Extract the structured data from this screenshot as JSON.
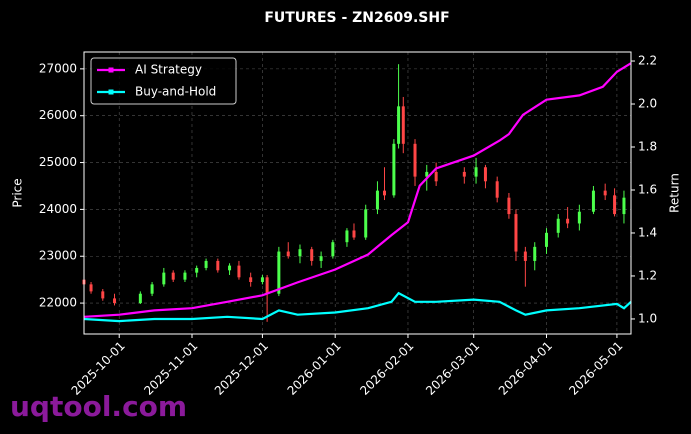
{
  "chart_data": {
    "type": "candlestick",
    "title": "FUTURES - ZN2609.SHF",
    "ylabel": "Price",
    "y2label": "Return",
    "watermark": "uqtool.com",
    "up_color": "#4cff4c",
    "down_color": "#ff4646",
    "x": [
      "2025-09-16",
      "2025-09-19",
      "2025-09-24",
      "2025-09-29",
      "2025-10-10",
      "2025-10-15",
      "2025-10-20",
      "2025-10-24",
      "2025-10-29",
      "2025-11-03",
      "2025-11-07",
      "2025-11-12",
      "2025-11-17",
      "2025-11-21",
      "2025-11-26",
      "2025-12-01",
      "2025-12-03",
      "2025-12-08",
      "2025-12-12",
      "2025-12-17",
      "2025-12-22",
      "2025-12-26",
      "2025-12-31",
      "2026-01-06",
      "2026-01-09",
      "2026-01-14",
      "2026-01-19",
      "2026-01-22",
      "2026-01-26",
      "2026-01-28",
      "2026-01-30",
      "2026-02-04",
      "2026-02-09",
      "2026-02-13",
      "2026-02-25",
      "2026-03-02",
      "2026-03-06",
      "2026-03-11",
      "2026-03-16",
      "2026-03-19",
      "2026-03-23",
      "2026-03-27",
      "2026-04-01",
      "2026-04-06",
      "2026-04-10",
      "2026-04-15",
      "2026-04-21",
      "2026-04-26",
      "2026-04-30",
      "2026-05-04"
    ],
    "open": [
      22500,
      22400,
      22250,
      22100,
      22000,
      22200,
      22400,
      22650,
      22500,
      22650,
      22750,
      22900,
      22700,
      22800,
      22550,
      22450,
      22550,
      22200,
      23100,
      23000,
      23150,
      22900,
      23000,
      23300,
      23550,
      23400,
      24000,
      24400,
      24300,
      25400,
      26200,
      25400,
      24700,
      24800,
      24800,
      24700,
      24900,
      24600,
      24250,
      23900,
      23100,
      22900,
      23200,
      23500,
      23800,
      23700,
      23950,
      24400,
      24300,
      23900
    ],
    "high": [
      22560,
      22450,
      22300,
      22200,
      22250,
      22450,
      22750,
      22700,
      22700,
      22800,
      22950,
      22950,
      22850,
      22900,
      22650,
      22600,
      22600,
      23200,
      23300,
      23250,
      23200,
      23100,
      23350,
      23600,
      23700,
      24100,
      24600,
      24900,
      25500,
      27100,
      26400,
      25500,
      24950,
      25000,
      24900,
      25100,
      24950,
      24700,
      24350,
      24000,
      23200,
      23300,
      23600,
      23900,
      24050,
      24100,
      24500,
      24550,
      24450,
      24400
    ],
    "low": [
      22350,
      22200,
      22050,
      21950,
      21980,
      22150,
      22350,
      22450,
      22450,
      22550,
      22700,
      22650,
      22600,
      22500,
      22350,
      22400,
      21600,
      22150,
      22950,
      22850,
      22800,
      22750,
      22950,
      23200,
      23350,
      23350,
      23900,
      24200,
      24250,
      25300,
      25200,
      24500,
      24400,
      24500,
      24550,
      24550,
      24450,
      24150,
      23800,
      22900,
      22350,
      22700,
      23050,
      23400,
      23600,
      23550,
      23900,
      24200,
      23850,
      23700
    ],
    "close": [
      22400,
      22250,
      22100,
      22000,
      22200,
      22400,
      22650,
      22500,
      22650,
      22750,
      22900,
      22700,
      22800,
      22550,
      22450,
      22550,
      22200,
      23100,
      23000,
      23150,
      22900,
      23000,
      23300,
      23550,
      23400,
      24000,
      24400,
      24300,
      25400,
      26200,
      25400,
      24700,
      24800,
      24600,
      24700,
      24900,
      24600,
      24250,
      23900,
      23100,
      22900,
      23200,
      23500,
      23800,
      23700,
      23950,
      24400,
      24300,
      23900,
      24250
    ],
    "series": [
      {
        "name": "AI Strategy",
        "color": "#ff00ff",
        "axis": "y2",
        "x": [
          "2025-09-16",
          "2025-10-01",
          "2025-10-16",
          "2025-11-01",
          "2025-11-16",
          "2025-12-01",
          "2025-12-16",
          "2026-01-01",
          "2026-01-15",
          "2026-01-25",
          "2026-02-01",
          "2026-02-06",
          "2026-02-13",
          "2026-03-01",
          "2026-03-12",
          "2026-03-16",
          "2026-03-22",
          "2026-04-01",
          "2026-04-15",
          "2026-04-25",
          "2026-05-01",
          "2026-05-07"
        ],
        "values": [
          1.01,
          1.02,
          1.04,
          1.05,
          1.08,
          1.11,
          1.17,
          1.23,
          1.3,
          1.39,
          1.45,
          1.62,
          1.7,
          1.76,
          1.83,
          1.86,
          1.95,
          2.02,
          2.04,
          2.08,
          2.15,
          2.19
        ]
      },
      {
        "name": "Buy-and-Hold",
        "color": "#00ffff",
        "axis": "y2",
        "x": [
          "2025-09-16",
          "2025-10-01",
          "2025-10-16",
          "2025-11-01",
          "2025-11-16",
          "2025-12-01",
          "2025-12-08",
          "2025-12-16",
          "2026-01-01",
          "2026-01-15",
          "2026-01-25",
          "2026-01-28",
          "2026-02-04",
          "2026-02-13",
          "2026-03-01",
          "2026-03-12",
          "2026-03-19",
          "2026-03-23",
          "2026-04-01",
          "2026-04-15",
          "2026-05-01",
          "2026-05-04",
          "2026-05-07"
        ],
        "values": [
          1.0,
          0.99,
          1.0,
          1.0,
          1.01,
          1.0,
          1.04,
          1.02,
          1.03,
          1.05,
          1.08,
          1.12,
          1.08,
          1.08,
          1.09,
          1.08,
          1.04,
          1.02,
          1.04,
          1.05,
          1.07,
          1.05,
          1.08
        ]
      }
    ],
    "xlim": [
      "2025-09-16",
      "2026-05-07"
    ],
    "xticks": [
      "2025-10-01",
      "2025-11-01",
      "2025-12-01",
      "2026-01-01",
      "2026-02-01",
      "2026-03-01",
      "2026-04-01",
      "2026-05-01"
    ],
    "ylim": [
      21340,
      27360
    ],
    "yticks": [
      22000,
      23000,
      24000,
      25000,
      26000,
      27000
    ],
    "y2lim": [
      0.93,
      2.242
    ],
    "y2ticks": [
      {
        "value": 1,
        "label": "1.0"
      },
      1.2,
      1.4,
      1.6,
      1.8,
      {
        "value": 2,
        "label": "2.0"
      },
      2.2
    ],
    "grid": true,
    "legend": "upper left"
  }
}
